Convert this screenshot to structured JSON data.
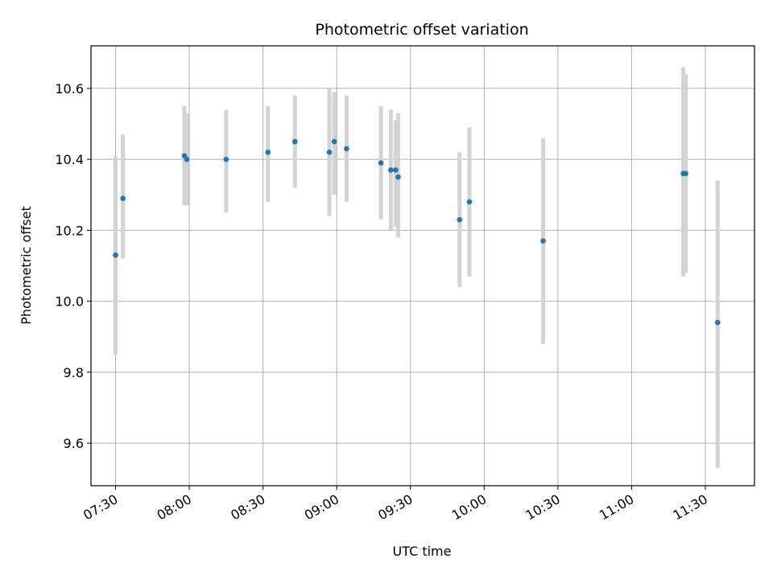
{
  "chart_data": {
    "type": "scatter",
    "title": "Photometric offset variation",
    "xlabel": "UTC time",
    "ylabel": "Photometric offset",
    "x_is_time": true,
    "xlim": [
      "07:20",
      "11:50"
    ],
    "ylim": [
      9.48,
      10.72
    ],
    "grid": true,
    "x_ticks": [
      "07:30",
      "08:00",
      "08:30",
      "09:00",
      "09:30",
      "10:00",
      "10:30",
      "11:00",
      "11:30"
    ],
    "y_ticks": [
      9.6,
      9.8,
      10.0,
      10.2,
      10.4,
      10.6
    ],
    "y_tick_labels": [
      "9.6",
      "9.8",
      "10.0",
      "10.2",
      "10.4",
      "10.6"
    ],
    "errorbar_color": "#d3d3d3",
    "point_color": "#1f77b4",
    "series": [
      {
        "points": [
          {
            "x": "07:30",
            "y": 10.13,
            "low": 9.85,
            "high": 10.41
          },
          {
            "x": "07:33",
            "y": 10.29,
            "low": 10.12,
            "high": 10.47
          },
          {
            "x": "07:58",
            "y": 10.41,
            "low": 10.27,
            "high": 10.55
          },
          {
            "x": "07:59",
            "y": 10.4,
            "low": 10.27,
            "high": 10.53
          },
          {
            "x": "08:15",
            "y": 10.4,
            "low": 10.25,
            "high": 10.54
          },
          {
            "x": "08:32",
            "y": 10.42,
            "low": 10.28,
            "high": 10.55
          },
          {
            "x": "08:43",
            "y": 10.45,
            "low": 10.32,
            "high": 10.58
          },
          {
            "x": "08:57",
            "y": 10.42,
            "low": 10.24,
            "high": 10.6
          },
          {
            "x": "08:59",
            "y": 10.45,
            "low": 10.3,
            "high": 10.59
          },
          {
            "x": "09:04",
            "y": 10.43,
            "low": 10.28,
            "high": 10.58
          },
          {
            "x": "09:18",
            "y": 10.39,
            "low": 10.23,
            "high": 10.55
          },
          {
            "x": "09:22",
            "y": 10.37,
            "low": 10.2,
            "high": 10.54
          },
          {
            "x": "09:24",
            "y": 10.37,
            "low": 10.21,
            "high": 10.51
          },
          {
            "x": "09:25",
            "y": 10.35,
            "low": 10.18,
            "high": 10.53
          },
          {
            "x": "09:50",
            "y": 10.23,
            "low": 10.04,
            "high": 10.42
          },
          {
            "x": "09:54",
            "y": 10.28,
            "low": 10.07,
            "high": 10.49
          },
          {
            "x": "10:24",
            "y": 10.17,
            "low": 9.88,
            "high": 10.46
          },
          {
            "x": "11:21",
            "y": 10.36,
            "low": 10.07,
            "high": 10.66
          },
          {
            "x": "11:22",
            "y": 10.36,
            "low": 10.08,
            "high": 10.64
          },
          {
            "x": "11:35",
            "y": 9.94,
            "low": 9.53,
            "high": 10.34
          }
        ]
      }
    ]
  }
}
